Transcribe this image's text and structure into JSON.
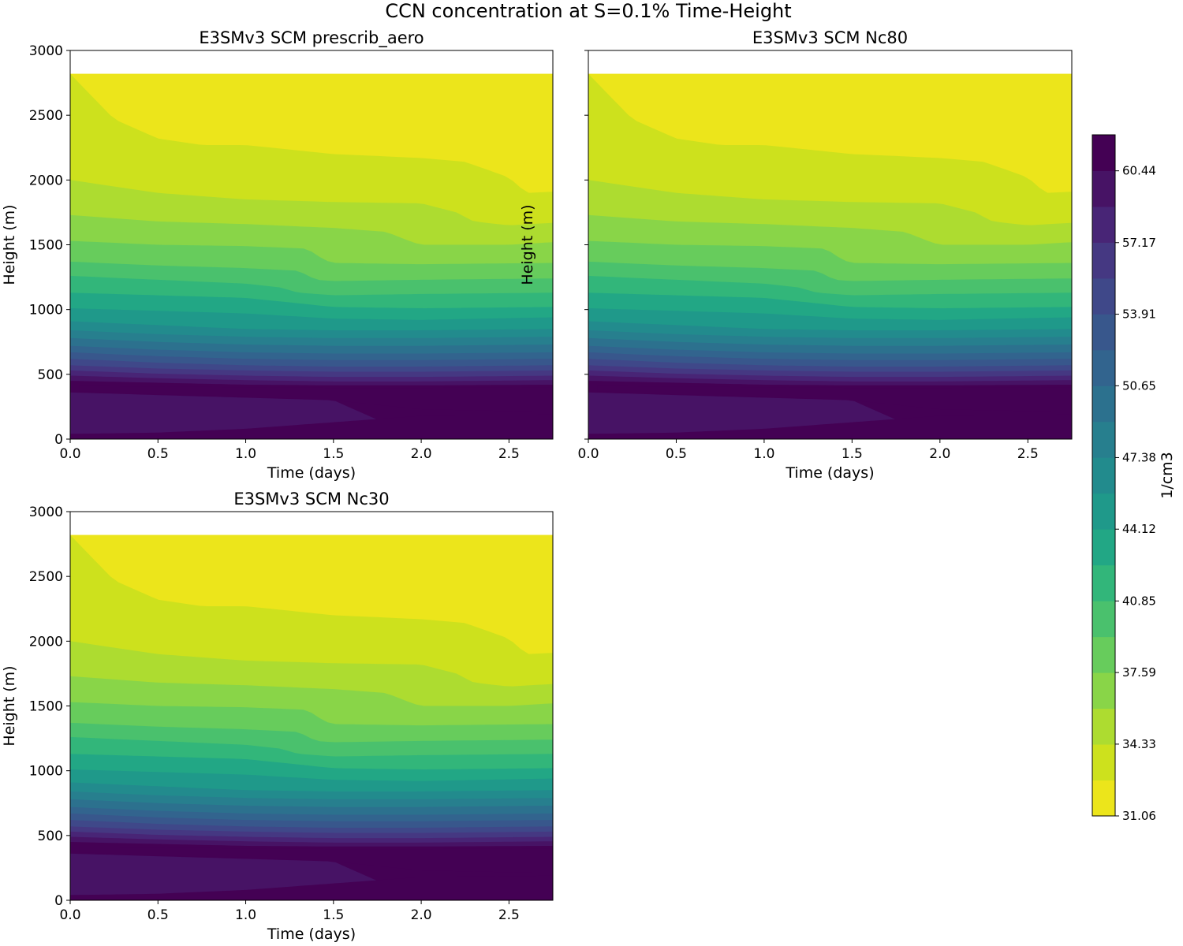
{
  "figure": {
    "title": "CCN concentration at S=0.1% Time-Height"
  },
  "chart_data": [
    {
      "type": "heatmap",
      "title": "E3SMv3 SCM prescrib_aero",
      "xlabel": "Time (days)",
      "ylabel": "Height (m)",
      "xlim": [
        0,
        2.75
      ],
      "ylim": [
        0,
        3000
      ],
      "xticks": [
        "0.0",
        "0.5",
        "1.0",
        "1.5",
        "2.0",
        "2.5"
      ],
      "yticks": [
        "0",
        "500",
        "1000",
        "1500",
        "2000",
        "2500",
        "3000"
      ],
      "y_top_of_data": 2820,
      "boundary_heights_m": [
        {
          "level": 1,
          "x": [
            0,
            0.25,
            0.5,
            0.75,
            1.0,
            1.5,
            2.0,
            2.25,
            2.5,
            2.6,
            2.75
          ],
          "y": [
            2820,
            2470,
            2320,
            2270,
            2270,
            2200,
            2170,
            2140,
            2020,
            1900,
            1910
          ]
        },
        {
          "level": 2,
          "x": [
            0,
            0.5,
            1.0,
            1.5,
            2.0,
            2.2,
            2.3,
            2.5,
            2.75
          ],
          "y": [
            2000,
            1900,
            1850,
            1830,
            1820,
            1750,
            1680,
            1650,
            1670
          ]
        },
        {
          "level": 3,
          "x": [
            0,
            0.5,
            1.0,
            1.5,
            1.8,
            1.95,
            2.0,
            2.5,
            2.75
          ],
          "y": [
            1730,
            1680,
            1660,
            1630,
            1600,
            1520,
            1500,
            1500,
            1520
          ]
        },
        {
          "level": 4,
          "x": [
            0,
            0.5,
            1.0,
            1.35,
            1.45,
            1.5,
            2.0,
            2.75
          ],
          "y": [
            1530,
            1500,
            1490,
            1470,
            1380,
            1360,
            1350,
            1360
          ]
        },
        {
          "level": 5,
          "x": [
            0,
            0.5,
            1.0,
            1.3,
            1.4,
            1.5,
            2.0,
            2.75
          ],
          "y": [
            1370,
            1340,
            1320,
            1300,
            1230,
            1220,
            1230,
            1240
          ]
        },
        {
          "level": 6,
          "x": [
            0,
            0.5,
            1.0,
            1.2,
            1.3,
            1.5,
            2.0,
            2.75
          ],
          "y": [
            1260,
            1230,
            1200,
            1170,
            1130,
            1110,
            1120,
            1130
          ]
        },
        {
          "level": 7,
          "x": [
            0,
            0.5,
            1.0,
            1.5,
            2.0,
            2.75
          ],
          "y": [
            1130,
            1110,
            1090,
            1020,
            1010,
            1020
          ]
        },
        {
          "level": 8,
          "x": [
            0,
            0.5,
            1.0,
            1.5,
            2.0,
            2.75
          ],
          "y": [
            1010,
            990,
            970,
            930,
            920,
            940
          ]
        },
        {
          "level": 9,
          "x": [
            0,
            0.5,
            1.0,
            1.5,
            2.0,
            2.75
          ],
          "y": [
            910,
            880,
            850,
            840,
            840,
            850
          ]
        },
        {
          "level": 10,
          "x": [
            0,
            0.5,
            1.0,
            1.5,
            2.0,
            2.75
          ],
          "y": [
            840,
            810,
            790,
            780,
            780,
            790
          ]
        },
        {
          "level": 11,
          "x": [
            0,
            0.5,
            1.0,
            1.5,
            2.0,
            2.75
          ],
          "y": [
            780,
            750,
            730,
            720,
            720,
            730
          ]
        },
        {
          "level": 12,
          "x": [
            0,
            0.5,
            1.0,
            1.5,
            2.0,
            2.75
          ],
          "y": [
            720,
            690,
            670,
            660,
            660,
            670
          ]
        },
        {
          "level": 13,
          "x": [
            0,
            0.5,
            1.0,
            1.5,
            2.0,
            2.75
          ],
          "y": [
            670,
            640,
            620,
            610,
            610,
            620
          ]
        },
        {
          "level": 14,
          "x": [
            0,
            0.5,
            1.0,
            1.5,
            2.0,
            2.75
          ],
          "y": [
            620,
            590,
            570,
            560,
            560,
            570
          ]
        },
        {
          "level": 15,
          "x": [
            0,
            0.5,
            1.0,
            1.5,
            2.0,
            2.75
          ],
          "y": [
            570,
            545,
            530,
            520,
            520,
            530
          ]
        },
        {
          "level": 16,
          "x": [
            0,
            0.5,
            1.0,
            1.5,
            2.0,
            2.75
          ],
          "y": [
            530,
            505,
            490,
            480,
            480,
            490
          ]
        },
        {
          "level": 17,
          "x": [
            0,
            0.5,
            1.0,
            1.5,
            2.0,
            2.75
          ],
          "y": [
            490,
            470,
            455,
            445,
            445,
            455
          ]
        },
        {
          "level": 18,
          "x": [
            0,
            0.5,
            1.0,
            1.5,
            2.0,
            2.75
          ],
          "y": [
            450,
            435,
            420,
            415,
            415,
            420
          ]
        }
      ],
      "dark_regions": [
        {
          "shade": "mid_dark",
          "x": [
            0,
            0.5,
            1.0,
            1.5,
            2.0,
            2.75
          ],
          "top": [
            360,
            340,
            320,
            300,
            0,
            0
          ],
          "bottom": [
            40,
            40,
            70,
            100,
            0,
            0
          ]
        },
        {
          "shade": "darkest",
          "x": [
            0.05,
            0.5,
            1.0,
            1.5,
            2.0,
            2.75
          ],
          "top": [
            410,
            405,
            400,
            395,
            395,
            400
          ],
          "bottom": [
            370,
            345,
            330,
            300,
            230,
            210
          ]
        },
        {
          "shade": "darkest",
          "x": [
            0,
            0.5,
            1.0,
            1.5,
            2.0,
            2.75
          ],
          "top": [
            40,
            50,
            80,
            130,
            180,
            190
          ],
          "bottom": [
            0,
            0,
            0,
            0,
            0,
            0
          ]
        }
      ]
    },
    {
      "type": "heatmap",
      "title": "E3SMv3 SCM Nc80",
      "xlabel": "Time (days)",
      "ylabel": "Height (m)",
      "xlim": [
        0,
        2.75
      ],
      "ylim": [
        0,
        3000
      ],
      "xticks": [
        "0.0",
        "0.5",
        "1.0",
        "1.5",
        "2.0",
        "2.5"
      ],
      "yticks": [],
      "y_top_of_data": 2820,
      "boundary_heights_m": "same_as_panel_1"
    },
    {
      "type": "heatmap",
      "title": "E3SMv3 SCM Nc30",
      "xlabel": "Time (days)",
      "ylabel": "Height (m)",
      "xlim": [
        0,
        2.75
      ],
      "ylim": [
        0,
        3000
      ],
      "xticks": [
        "0.0",
        "0.5",
        "1.0",
        "1.5",
        "2.0",
        "2.5"
      ],
      "yticks": [
        "0",
        "500",
        "1000",
        "1500",
        "2000",
        "2500",
        "3000"
      ],
      "y_top_of_data": 2820,
      "boundary_heights_m": "same_as_panel_1"
    }
  ],
  "colorbar": {
    "label": "1/cm3",
    "vmin": 31.06,
    "vmax": 62.08,
    "ticks": [
      "31.06",
      "34.33",
      "37.59",
      "40.85",
      "44.12",
      "47.38",
      "50.65",
      "53.91",
      "57.17",
      "60.44"
    ],
    "tick_values": [
      31.06,
      34.33,
      37.59,
      40.85,
      44.12,
      47.38,
      50.65,
      53.91,
      57.17,
      60.44
    ],
    "n_levels": 19,
    "colors": [
      "#ece51b",
      "#cde11d",
      "#addc30",
      "#89d548",
      "#67cc5c",
      "#4ac16d",
      "#32b67a",
      "#22a785",
      "#1f998a",
      "#228b8d",
      "#277f8e",
      "#2c718e",
      "#32648e",
      "#38578c",
      "#3f4889",
      "#453882",
      "#482576",
      "#471365",
      "#440154"
    ]
  }
}
